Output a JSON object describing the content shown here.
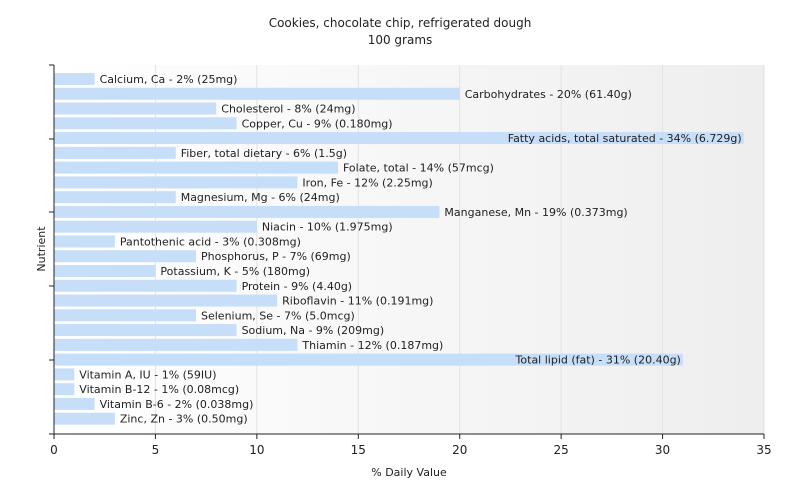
{
  "chart_data": {
    "type": "bar",
    "orientation": "horizontal",
    "title": "Cookies, chocolate chip, refrigerated dough",
    "subtitle": "100 grams",
    "xlabel": "% Daily Value",
    "ylabel": "Nutrient",
    "xlim": [
      0,
      35
    ],
    "xticks": [
      "0",
      "5",
      "10",
      "15",
      "20",
      "25",
      "30",
      "35"
    ],
    "grid": "vertical",
    "bar_color": "#c6def8",
    "categories": [
      "Calcium, Ca",
      "Carbohydrates",
      "Cholesterol",
      "Copper, Cu",
      "Fatty acids, total saturated",
      "Fiber, total dietary",
      "Folate, total",
      "Iron, Fe",
      "Magnesium, Mg",
      "Manganese, Mn",
      "Niacin",
      "Pantothenic acid",
      "Phosphorus, P",
      "Potassium, K",
      "Protein",
      "Riboflavin",
      "Selenium, Se",
      "Sodium, Na",
      "Thiamin",
      "Total lipid (fat)",
      "Vitamin A, IU",
      "Vitamin B-12",
      "Vitamin B-6",
      "Zinc, Zn"
    ],
    "values": [
      2,
      20,
      8,
      9,
      34,
      6,
      14,
      12,
      6,
      19,
      10,
      3,
      7,
      5,
      9,
      11,
      7,
      9,
      12,
      31,
      1,
      1,
      2,
      3
    ],
    "labels": [
      "Calcium, Ca - 2% (25mg)",
      "Carbohydrates - 20% (61.40g)",
      "Cholesterol - 8% (24mg)",
      "Copper, Cu - 9% (0.180mg)",
      "Fatty acids, total saturated - 34% (6.729g)",
      "Fiber, total dietary - 6% (1.5g)",
      "Folate, total - 14% (57mcg)",
      "Iron, Fe - 12% (2.25mg)",
      "Magnesium, Mg - 6% (24mg)",
      "Manganese, Mn - 19% (0.373mg)",
      "Niacin - 10% (1.975mg)",
      "Pantothenic acid - 3% (0.308mg)",
      "Phosphorus, P - 7% (69mg)",
      "Potassium, K - 5% (180mg)",
      "Protein - 9% (4.40g)",
      "Riboflavin - 11% (0.191mg)",
      "Selenium, Se - 7% (5.0mcg)",
      "Sodium, Na - 9% (209mg)",
      "Thiamin - 12% (0.187mg)",
      "Total lipid (fat) - 31% (20.40g)",
      "Vitamin A, IU - 1% (59IU)",
      "Vitamin B-12 - 1% (0.08mcg)",
      "Vitamin B-6 - 2% (0.038mg)",
      "Zinc, Zn - 3% (0.50mg)"
    ]
  }
}
